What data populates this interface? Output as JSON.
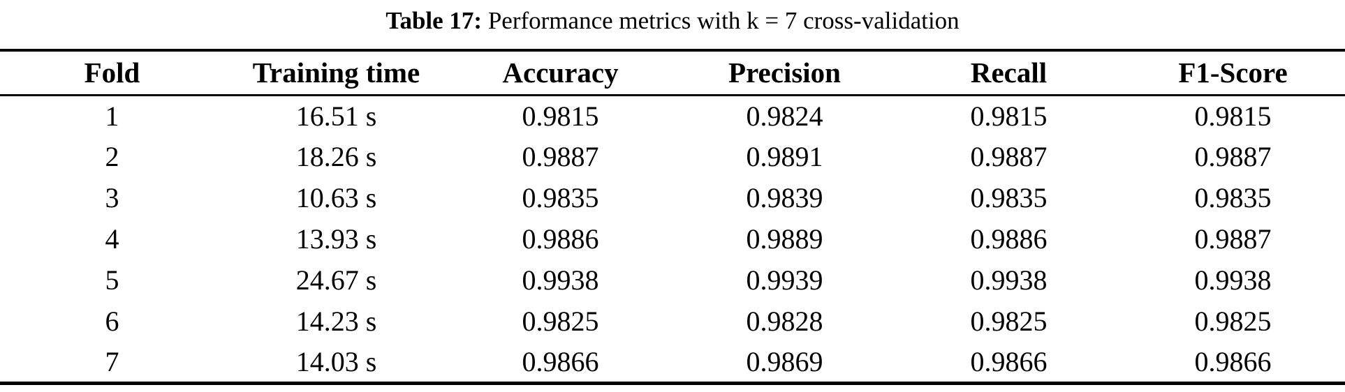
{
  "caption": {
    "label": "Table 17:",
    "text": " Performance metrics with k = 7 cross-validation"
  },
  "table": {
    "headers": [
      "Fold",
      "Training time",
      "Accuracy",
      "Precision",
      "Recall",
      "F1-Score"
    ],
    "rows": [
      [
        "1",
        "16.51 s",
        "0.9815",
        "0.9824",
        "0.9815",
        "0.9815"
      ],
      [
        "2",
        "18.26 s",
        "0.9887",
        "0.9891",
        "0.9887",
        "0.9887"
      ],
      [
        "3",
        "10.63 s",
        "0.9835",
        "0.9839",
        "0.9835",
        "0.9835"
      ],
      [
        "4",
        "13.93 s",
        "0.9886",
        "0.9889",
        "0.9886",
        "0.9887"
      ],
      [
        "5",
        "24.67 s",
        "0.9938",
        "0.9939",
        "0.9938",
        "0.9938"
      ],
      [
        "6",
        "14.23 s",
        "0.9825",
        "0.9828",
        "0.9825",
        "0.9825"
      ],
      [
        "7",
        "14.03 s",
        "0.9866",
        "0.9869",
        "0.9866",
        "0.9866"
      ]
    ]
  },
  "colors": {
    "background": "#ffffff",
    "text": "#000000",
    "rule": "#000000"
  }
}
